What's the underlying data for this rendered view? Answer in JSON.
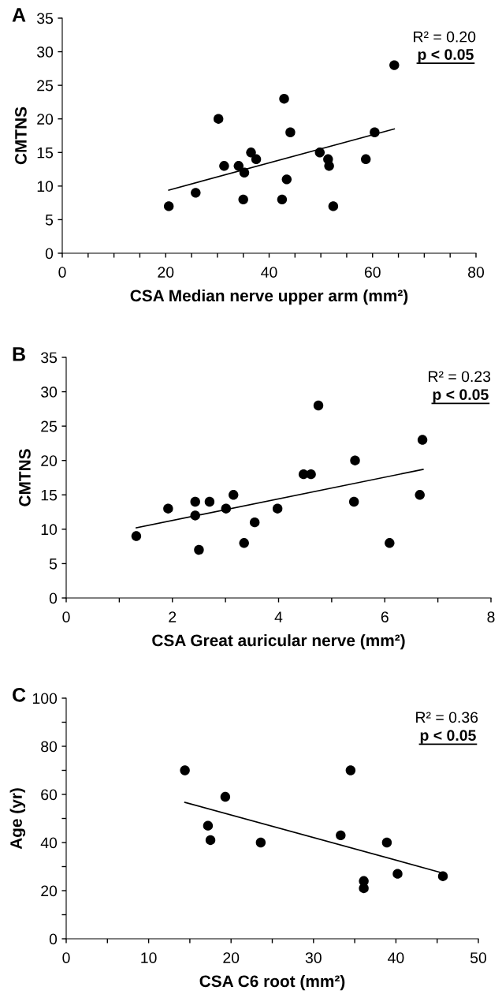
{
  "chart_data": [
    {
      "type": "scatter",
      "xlabel": "CSA Median nerve upper arm (mm²)",
      "ylabel": "CMTNS",
      "annotations": [
        "A",
        "R² = 0.20",
        "p < 0.05"
      ],
      "xlim": [
        0,
        80
      ],
      "ylim": [
        0,
        35
      ],
      "xticks": [
        0,
        {
          "value": 5,
          "label": null
        },
        {
          "value": 10,
          "label": null
        },
        {
          "value": 15,
          "label": null
        },
        20,
        {
          "value": 25,
          "label": null
        },
        {
          "value": 30,
          "label": null
        },
        {
          "value": 35,
          "label": null
        },
        40,
        {
          "value": 45,
          "label": null
        },
        {
          "value": 50,
          "label": null
        },
        {
          "value": 55,
          "label": null
        },
        60,
        {
          "value": 65,
          "label": null
        },
        {
          "value": 70,
          "label": null
        },
        {
          "value": 75,
          "label": null
        },
        80
      ],
      "yticks": [
        0,
        5,
        10,
        15,
        20,
        25,
        30,
        35
      ],
      "series": [
        {
          "color": "#000000",
          "marker": "circle",
          "x": [
            20.6,
            25.8,
            30.2,
            31.3,
            34.1,
            35.2,
            35.0,
            36.5,
            37.5,
            42.5,
            42.9,
            43.4,
            44.1,
            49.8,
            51.4,
            51.6,
            52.4,
            58.7,
            60.4,
            64.2
          ],
          "values": [
            7,
            9,
            20,
            13,
            13,
            12,
            8,
            15,
            14,
            8,
            23,
            11,
            18,
            15,
            14,
            13,
            7,
            14,
            18,
            28
          ]
        },
        {
          "type": "line",
          "color": "#000000",
          "marker": "none",
          "line_style": "solid",
          "x": [
            20.6,
            64.2
          ],
          "values": [
            9.4,
            18.5
          ]
        }
      ]
    },
    {
      "type": "scatter",
      "xlabel": "CSA Great auricular nerve (mm²)",
      "ylabel": "CMTNS",
      "annotations": [
        "B",
        "R² = 0.23",
        "p < 0.05"
      ],
      "xlim": [
        0,
        8
      ],
      "ylim": [
        0,
        35
      ],
      "xticks": [
        0,
        {
          "value": 1,
          "label": null
        },
        2,
        {
          "value": 3,
          "label": null
        },
        4,
        {
          "value": 5,
          "label": null
        },
        6,
        {
          "value": 7,
          "label": null
        },
        8
      ],
      "yticks": [
        0,
        5,
        10,
        15,
        20,
        25,
        30,
        35
      ],
      "series": [
        {
          "color": "#000000",
          "marker": "circle",
          "x": [
            1.32,
            1.92,
            2.43,
            2.43,
            2.5,
            2.7,
            3.01,
            3.15,
            3.35,
            3.55,
            3.98,
            4.47,
            4.61,
            4.75,
            5.42,
            5.44,
            6.09,
            6.66,
            6.71
          ],
          "values": [
            9,
            13,
            14,
            12,
            7,
            14,
            13,
            15,
            8,
            11,
            13,
            18,
            18,
            28,
            14,
            20,
            8,
            15,
            23
          ]
        },
        {
          "type": "line",
          "color": "#000000",
          "marker": "none",
          "line_style": "solid",
          "x": [
            1.32,
            6.72
          ],
          "values": [
            10.2,
            18.7
          ]
        }
      ]
    },
    {
      "type": "scatter",
      "xlabel": "CSA C6 root (mm²)",
      "ylabel": "Age (yr)",
      "annotations": [
        "C",
        "R² = 0.36",
        "p < 0.05"
      ],
      "xlim": [
        0,
        50
      ],
      "ylim": [
        0,
        100
      ],
      "xticks": [
        0,
        {
          "value": 5,
          "label": null
        },
        10,
        {
          "value": 15,
          "label": null
        },
        20,
        {
          "value": 25,
          "label": null
        },
        30,
        {
          "value": 35,
          "label": null
        },
        40,
        {
          "value": 45,
          "label": null
        },
        50
      ],
      "yticks": [
        0,
        {
          "value": 10,
          "label": null
        },
        20,
        {
          "value": 30,
          "label": null
        },
        40,
        {
          "value": 50,
          "label": null
        },
        60,
        {
          "value": 70,
          "label": null
        },
        80,
        {
          "value": 90,
          "label": null
        },
        100
      ],
      "series": [
        {
          "color": "#000000",
          "marker": "circle",
          "x": [
            14.4,
            17.2,
            17.5,
            19.3,
            23.6,
            33.3,
            34.5,
            36.1,
            36.1,
            38.9,
            40.2,
            45.7
          ],
          "values": [
            70,
            47,
            41,
            59,
            40,
            43,
            70,
            24,
            21,
            40,
            27,
            26
          ]
        },
        {
          "type": "line",
          "color": "#000000",
          "marker": "none",
          "line_style": "solid",
          "x": [
            14.4,
            45.7
          ],
          "values": [
            56.7,
            27.3
          ]
        }
      ]
    }
  ]
}
